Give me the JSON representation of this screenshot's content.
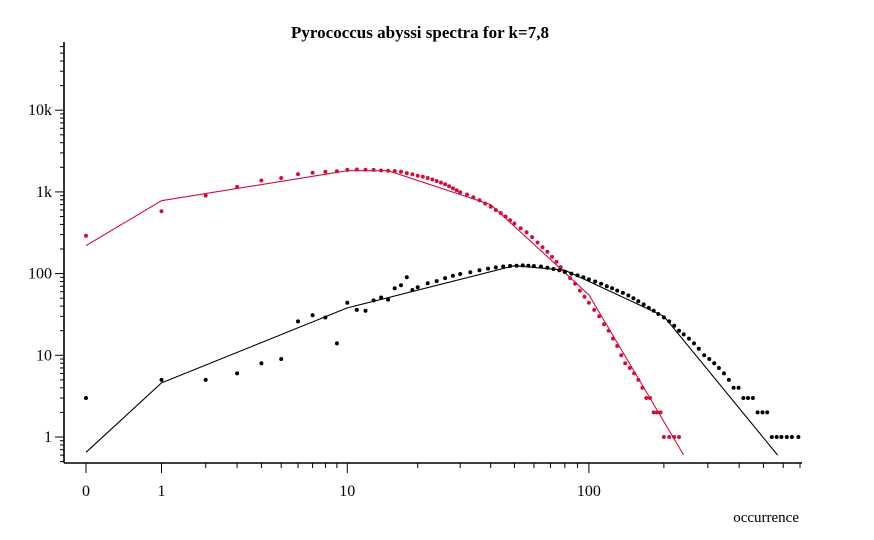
{
  "chart_data": {
    "type": "scatter",
    "title": "Pyrococcus abyssi spectra for k=7,8",
    "xlabel": "occurrence",
    "ylabel": "",
    "x_scale": "log(1+x)",
    "y_scale": "log",
    "xlim": [
      0,
      700
    ],
    "ylim": [
      0.4,
      70000
    ],
    "x_ticks": [
      0,
      1,
      10,
      100
    ],
    "x_tick_labels": [
      "0",
      "1",
      "10",
      "100"
    ],
    "y_ticks": [
      1,
      10,
      100,
      1000,
      10000
    ],
    "y_tick_labels": [
      "1",
      "10",
      "100",
      "1k",
      "10k"
    ],
    "grid": false,
    "legend": "none",
    "series": [
      {
        "color": "#d0103a",
        "points": [
          [
            0,
            290
          ],
          [
            1,
            580
          ],
          [
            2,
            900
          ],
          [
            3,
            1150
          ],
          [
            4,
            1380
          ],
          [
            5,
            1480
          ],
          [
            6,
            1650
          ],
          [
            7,
            1720
          ],
          [
            8,
            1760
          ],
          [
            9,
            1790
          ],
          [
            10,
            1860
          ],
          [
            11,
            1880
          ],
          [
            12,
            1870
          ],
          [
            13,
            1860
          ],
          [
            14,
            1830
          ],
          [
            15,
            1820
          ],
          [
            16,
            1800
          ],
          [
            17,
            1760
          ],
          [
            18,
            1700
          ],
          [
            19,
            1640
          ],
          [
            20,
            1580
          ],
          [
            21,
            1540
          ],
          [
            22,
            1480
          ],
          [
            23,
            1420
          ],
          [
            24,
            1360
          ],
          [
            25,
            1300
          ],
          [
            26,
            1240
          ],
          [
            27,
            1170
          ],
          [
            28,
            1110
          ],
          [
            29,
            1050
          ],
          [
            30,
            990
          ],
          [
            32,
            930
          ],
          [
            34,
            860
          ],
          [
            36,
            790
          ],
          [
            38,
            720
          ],
          [
            40,
            660
          ],
          [
            42,
            600
          ],
          [
            44,
            550
          ],
          [
            46,
            500
          ],
          [
            48,
            450
          ],
          [
            50,
            410
          ],
          [
            53,
            360
          ],
          [
            56,
            320
          ],
          [
            59,
            280
          ],
          [
            62,
            240
          ],
          [
            65,
            210
          ],
          [
            68,
            185
          ],
          [
            71,
            160
          ],
          [
            74,
            140
          ],
          [
            77,
            120
          ],
          [
            80,
            105
          ],
          [
            84,
            88
          ],
          [
            88,
            75
          ],
          [
            92,
            62
          ],
          [
            96,
            52
          ],
          [
            100,
            44
          ],
          [
            105,
            36
          ],
          [
            110,
            30
          ],
          [
            115,
            24
          ],
          [
            120,
            20
          ],
          [
            125,
            16
          ],
          [
            130,
            13
          ],
          [
            135,
            10
          ],
          [
            140,
            8
          ],
          [
            146,
            7
          ],
          [
            152,
            6
          ],
          [
            158,
            5
          ],
          [
            164,
            4
          ],
          [
            170,
            3
          ],
          [
            176,
            3
          ],
          [
            182,
            2
          ],
          [
            188,
            2
          ],
          [
            194,
            2
          ],
          [
            200,
            1
          ],
          [
            210,
            1
          ],
          [
            220,
            1
          ],
          [
            230,
            1
          ]
        ],
        "fit": [
          [
            0,
            220
          ],
          [
            1,
            780
          ],
          [
            10,
            1820
          ],
          [
            15,
            1820
          ],
          [
            40,
            700
          ],
          [
            100,
            55
          ],
          [
            240,
            0.6
          ]
        ]
      },
      {
        "color": "#000000",
        "points": [
          [
            0,
            3
          ],
          [
            1,
            5
          ],
          [
            2,
            5
          ],
          [
            3,
            6
          ],
          [
            4,
            8
          ],
          [
            5,
            9
          ],
          [
            6,
            26
          ],
          [
            7,
            31
          ],
          [
            8,
            29
          ],
          [
            9,
            14
          ],
          [
            10,
            44
          ],
          [
            11,
            36
          ],
          [
            12,
            35
          ],
          [
            13,
            47
          ],
          [
            14,
            51
          ],
          [
            15,
            48
          ],
          [
            16,
            66
          ],
          [
            17,
            72
          ],
          [
            18,
            90
          ],
          [
            19,
            63
          ],
          [
            20,
            68
          ],
          [
            22,
            76
          ],
          [
            24,
            81
          ],
          [
            26,
            88
          ],
          [
            28,
            94
          ],
          [
            30,
            99
          ],
          [
            33,
            104
          ],
          [
            36,
            110
          ],
          [
            39,
            115
          ],
          [
            42,
            119
          ],
          [
            45,
            122
          ],
          [
            48,
            124
          ],
          [
            51,
            125
          ],
          [
            54,
            126
          ],
          [
            57,
            125
          ],
          [
            60,
            124
          ],
          [
            64,
            122
          ],
          [
            68,
            118
          ],
          [
            72,
            114
          ],
          [
            76,
            110
          ],
          [
            80,
            105
          ],
          [
            85,
            100
          ],
          [
            90,
            95
          ],
          [
            95,
            90
          ],
          [
            100,
            85
          ],
          [
            106,
            80
          ],
          [
            112,
            75
          ],
          [
            118,
            70
          ],
          [
            124,
            66
          ],
          [
            130,
            62
          ],
          [
            137,
            58
          ],
          [
            144,
            54
          ],
          [
            151,
            50
          ],
          [
            158,
            46
          ],
          [
            166,
            42
          ],
          [
            174,
            38
          ],
          [
            182,
            35
          ],
          [
            190,
            32
          ],
          [
            200,
            29
          ],
          [
            210,
            26
          ],
          [
            220,
            23
          ],
          [
            230,
            20
          ],
          [
            240,
            18
          ],
          [
            252,
            16
          ],
          [
            264,
            14
          ],
          [
            276,
            12
          ],
          [
            290,
            10
          ],
          [
            304,
            9
          ],
          [
            318,
            8
          ],
          [
            332,
            7
          ],
          [
            348,
            6
          ],
          [
            364,
            5
          ],
          [
            380,
            4
          ],
          [
            398,
            4
          ],
          [
            416,
            3
          ],
          [
            434,
            3
          ],
          [
            454,
            3
          ],
          [
            474,
            2
          ],
          [
            496,
            2
          ],
          [
            518,
            2
          ],
          [
            540,
            1
          ],
          [
            565,
            1
          ],
          [
            590,
            1
          ],
          [
            620,
            1
          ],
          [
            650,
            1
          ],
          [
            690,
            1
          ]
        ],
        "fit": [
          [
            0,
            0.65
          ],
          [
            1,
            4.6
          ],
          [
            10,
            38
          ],
          [
            50,
            125
          ],
          [
            80,
            110
          ],
          [
            200,
            30
          ],
          [
            570,
            0.6
          ]
        ]
      }
    ]
  }
}
